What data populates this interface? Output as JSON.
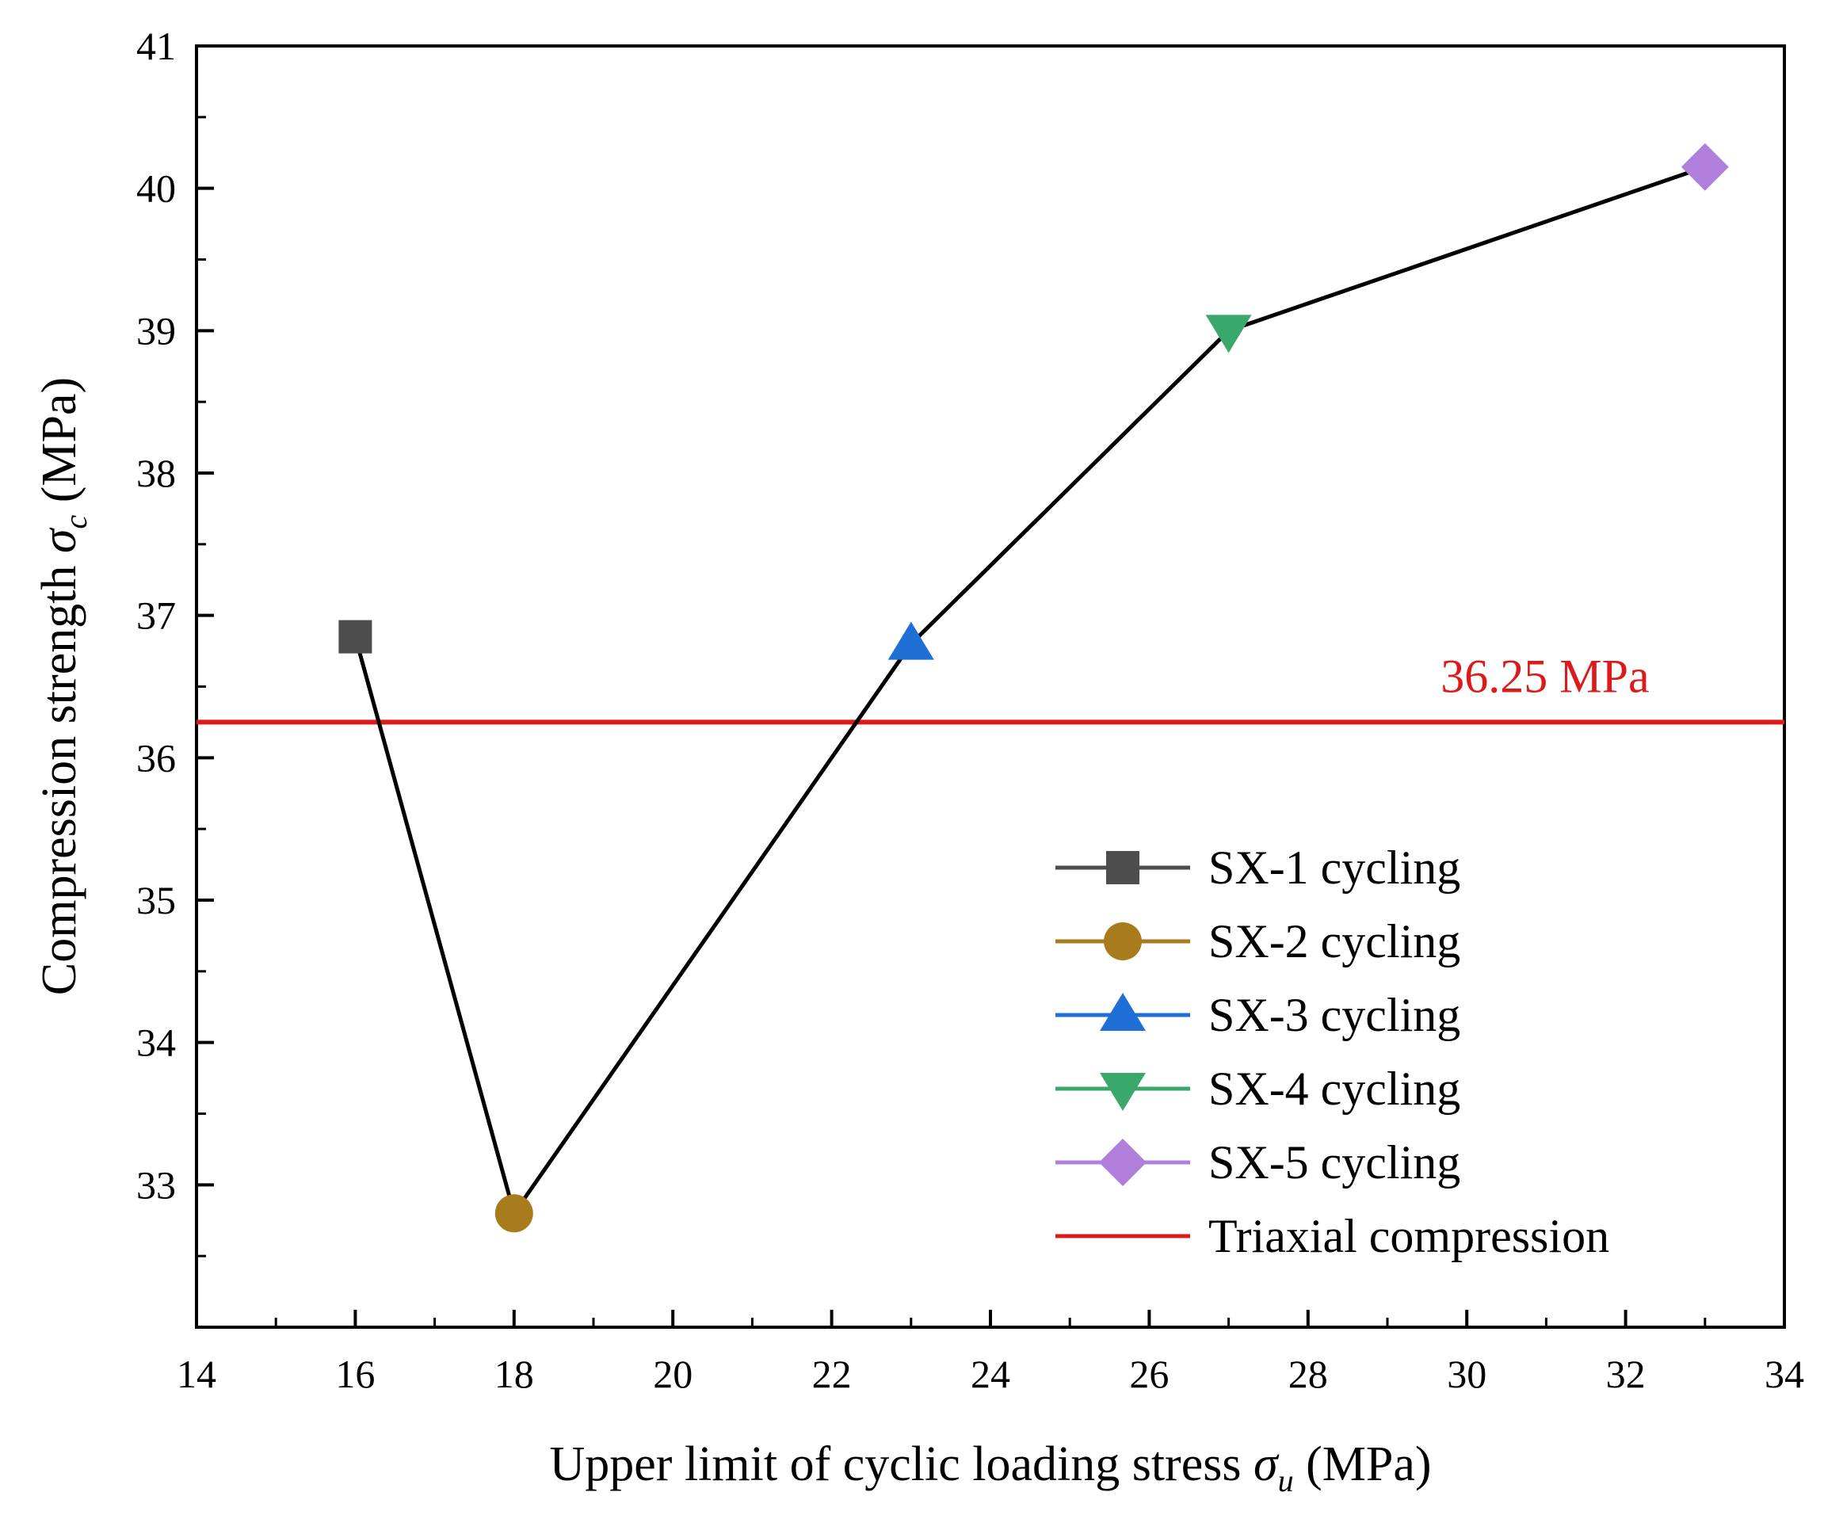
{
  "chart_data": {
    "type": "line",
    "title": "",
    "xlabel": {
      "main": "Upper limit of cyclic loading stress ",
      "symbol": "σ",
      "subscript": "u",
      "unit": " (MPa)"
    },
    "ylabel": {
      "main": "Compression strength ",
      "symbol": "σ",
      "subscript": "c",
      "unit": " (MPa)"
    },
    "xlim": [
      14,
      34
    ],
    "ylim": [
      32,
      41
    ],
    "x_ticks": [
      14,
      16,
      18,
      20,
      22,
      24,
      26,
      28,
      30,
      32,
      34
    ],
    "y_ticks": [
      33,
      34,
      35,
      36,
      37,
      38,
      39,
      40,
      41
    ],
    "line_color": "#000000",
    "series": [
      {
        "name": "SX-1 cycling",
        "x": 16,
        "y": 36.85,
        "marker": "square",
        "color": "#4d4d4d"
      },
      {
        "name": "SX-2 cycling",
        "x": 18,
        "y": 32.8,
        "marker": "circle",
        "color": "#a87c1c"
      },
      {
        "name": "SX-3 cycling",
        "x": 23,
        "y": 36.8,
        "marker": "triangle-up",
        "color": "#1f6fd6"
      },
      {
        "name": "SX-4 cycling",
        "x": 27,
        "y": 39.0,
        "marker": "triangle-down",
        "color": "#3aa86b"
      },
      {
        "name": "SX-5 cycling",
        "x": 33,
        "y": 40.15,
        "marker": "diamond",
        "color": "#b07fdc"
      }
    ],
    "reference_line": {
      "name": "Triaxial compression",
      "y": 36.25,
      "label": "36.25 MPa",
      "color": "#dd1a1a"
    },
    "legend_position": "lower-right",
    "grid": false
  }
}
